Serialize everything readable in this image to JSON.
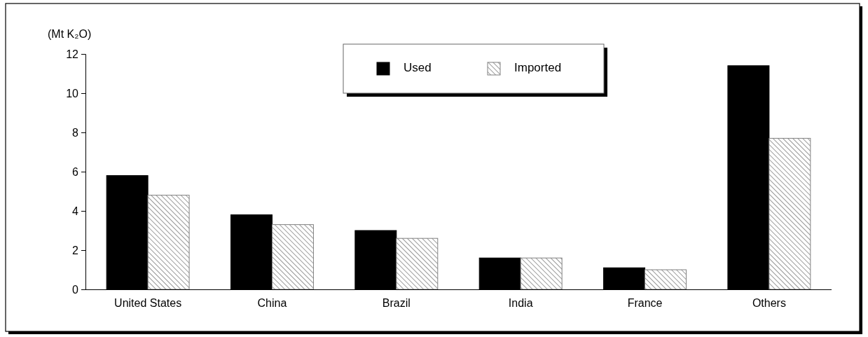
{
  "chart_data": {
    "type": "bar",
    "ylabel": "(Mt K₂O)",
    "categories": [
      "United States",
      "China",
      "Brazil",
      "India",
      "France",
      "Others"
    ],
    "series": [
      {
        "name": "Used",
        "color": "#000000",
        "values": [
          5.8,
          3.8,
          3.0,
          1.6,
          1.1,
          11.4
        ]
      },
      {
        "name": "Imported",
        "color": "#808080",
        "values": [
          4.8,
          3.3,
          2.6,
          1.6,
          1.0,
          7.7
        ]
      }
    ],
    "ylim": [
      0,
      12
    ],
    "yticks": [
      0,
      2,
      4,
      6,
      8,
      10,
      12
    ],
    "grid": false,
    "legend": "top"
  }
}
